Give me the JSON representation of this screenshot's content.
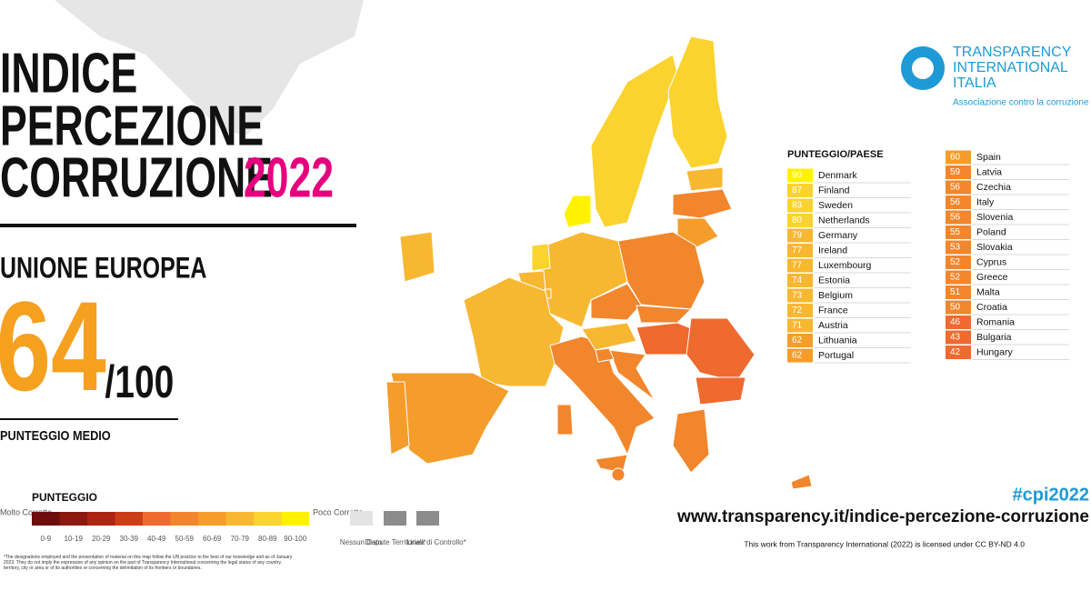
{
  "title_lines": [
    "INDICE",
    "PERCEZIONE",
    "CORRUZIONE"
  ],
  "title_year": "2022",
  "region": "UNIONE EUROPEA",
  "average": {
    "score": 64,
    "max": "/100",
    "label": "PUNTEGGIO MEDIO"
  },
  "logo": {
    "line1": "TRANSPARENCY",
    "line2": "INTERNATIONAL",
    "line3": "ITALIA",
    "tagline": "Associazione contro la corruzione"
  },
  "table": {
    "header": "PUNTEGGIO/PAESE",
    "left": [
      {
        "score": 90,
        "country": "Denmark"
      },
      {
        "score": 87,
        "country": "Finland"
      },
      {
        "score": 83,
        "country": "Sweden"
      },
      {
        "score": 80,
        "country": "Netherlands"
      },
      {
        "score": 79,
        "country": "Germany"
      },
      {
        "score": 77,
        "country": "Ireland"
      },
      {
        "score": 77,
        "country": "Luxembourg"
      },
      {
        "score": 74,
        "country": "Estonia"
      },
      {
        "score": 73,
        "country": "Belgium"
      },
      {
        "score": 72,
        "country": "France"
      },
      {
        "score": 71,
        "country": "Austria"
      },
      {
        "score": 62,
        "country": "Lithuania"
      },
      {
        "score": 62,
        "country": "Portugal"
      }
    ],
    "right": [
      {
        "score": 60,
        "country": "Spain"
      },
      {
        "score": 59,
        "country": "Latvia"
      },
      {
        "score": 56,
        "country": "Czechia"
      },
      {
        "score": 56,
        "country": "Italy"
      },
      {
        "score": 56,
        "country": "Slovenia"
      },
      {
        "score": 55,
        "country": "Poland"
      },
      {
        "score": 53,
        "country": "Slovakia"
      },
      {
        "score": 52,
        "country": "Cyprus"
      },
      {
        "score": 52,
        "country": "Greece"
      },
      {
        "score": 51,
        "country": "Malta"
      },
      {
        "score": 50,
        "country": "Croatia"
      },
      {
        "score": 46,
        "country": "Romania"
      },
      {
        "score": 43,
        "country": "Bulgaria"
      },
      {
        "score": 42,
        "country": "Hungary"
      }
    ]
  },
  "legend": {
    "title": "PUNTEGGIO",
    "low": "Molto Corrotto",
    "high": "Poco Corrotto",
    "bins": [
      "0-9",
      "10-19",
      "20-29",
      "30-39",
      "40-49",
      "50-59",
      "60-69",
      "70-79",
      "80-89",
      "90-100"
    ],
    "colors": [
      "#6e0d0d",
      "#8d1810",
      "#ad2412",
      "#cb3d15",
      "#ee6a2e",
      "#f2862c",
      "#f49d2a",
      "#f8b731",
      "#fbd32e",
      "#fff200"
    ],
    "no_data": "Nessun Dato",
    "disputed": "Dispute Territoriali*",
    "control": "Linea di Controllo*"
  },
  "footer": {
    "hashtag": "#cpi2022",
    "url": "www.transparency.it/indice-percezione-corruzione",
    "license": "This work from Transparency International (2022) is licensed under CC BY-ND 4.0",
    "disclaimer": "*The designations employed and the presentation of material on this map follow the UN practice to the best of our knowledge and as of January 2023. They do not imply the expression of any opinion on the part of Transparency International concerning the legal status of any country, territory, city or area or of its authorities or concerning the delimitation of its frontiers or boundaries."
  }
}
